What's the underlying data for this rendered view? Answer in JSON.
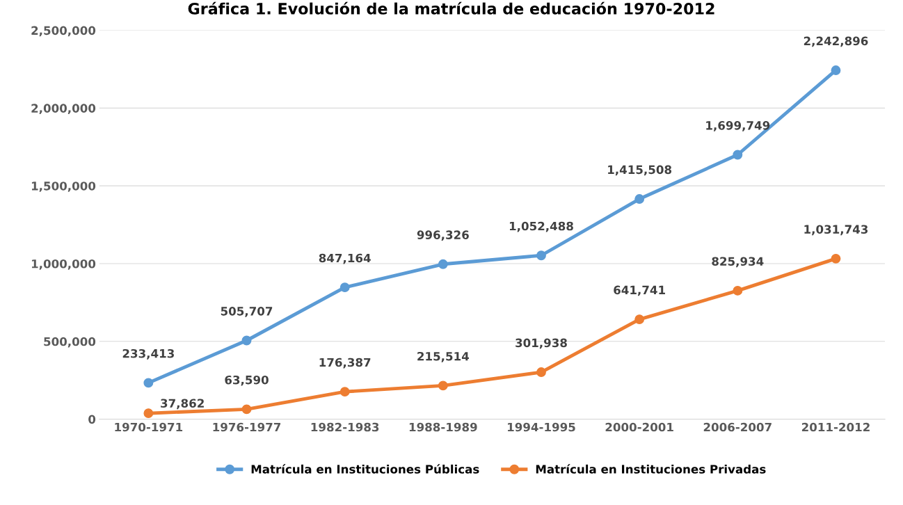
{
  "chart_data": {
    "type": "line",
    "title": "Gráfica 1. Evolución de la matrícula de educación 1970-2012",
    "categories": [
      "1970-1971",
      "1976-1977",
      "1982-1983",
      "1988-1989",
      "1994-1995",
      "2000-2001",
      "2006-2007",
      "2011-2012"
    ],
    "series": [
      {
        "name": "Matrícula en Instituciones Públicas",
        "color": "#5b9bd5",
        "values": [
          233413,
          505707,
          847164,
          996326,
          1052488,
          1415508,
          1699749,
          2242896
        ],
        "value_labels": [
          "233,413",
          "505,707",
          "847,164",
          "996,326",
          "1,052,488",
          "1,415,508",
          "1,699,749",
          "2,242,896"
        ]
      },
      {
        "name": "Matrícula en Instituciones Privadas",
        "color": "#ed7d31",
        "values": [
          37862,
          63590,
          176387,
          215514,
          301938,
          641741,
          825934,
          1031743
        ],
        "value_labels": [
          "37,862",
          "63,590",
          "176,387",
          "215,514",
          "301,938",
          "641,741",
          "825,934",
          "1,031,743"
        ]
      }
    ],
    "ylim": [
      0,
      2500000
    ],
    "yticks": [
      {
        "value": 0,
        "label": "0"
      },
      {
        "value": 500000,
        "label": "500,000"
      },
      {
        "value": 1000000,
        "label": "1,000,000"
      },
      {
        "value": 1500000,
        "label": "1,500,000"
      },
      {
        "value": 2000000,
        "label": "2,000,000"
      },
      {
        "value": 2500000,
        "label": "2,500,000"
      }
    ],
    "grid": "y",
    "legend": "bottom",
    "marker": "circle",
    "line_style": "solid"
  }
}
